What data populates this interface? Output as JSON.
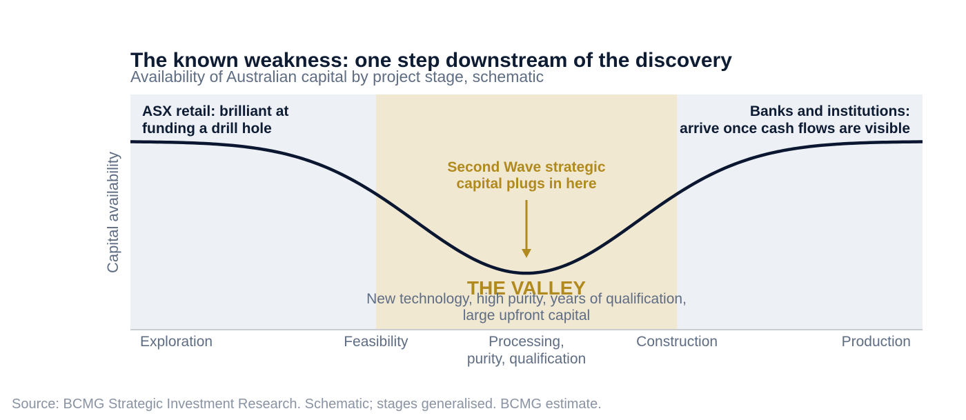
{
  "chart_data": {
    "type": "line",
    "title": "The known weakness: one step downstream of the discovery",
    "subtitle": "Availability of Australian capital by project stage, schematic",
    "ylabel": "Capital availability",
    "xlabel": "",
    "stages": [
      "Exploration",
      "Feasibility",
      "Processing,\npurity, qualification",
      "Construction",
      "Production"
    ],
    "stage_positions": [
      0,
      0.31,
      0.5,
      0.69,
      1.0
    ],
    "xlim": [
      0,
      1
    ],
    "ylim": [
      0,
      1
    ],
    "curve": {
      "description_free": true,
      "high": 0.8,
      "low": 0.24,
      "center": 0.5,
      "width": 0.14
    },
    "valley_band": [
      0.31,
      0.69
    ],
    "annotations": {
      "left": "ASX retail: brilliant at\nfunding a drill hole",
      "right": "Banks and institutions:\narrive once cash flows are visible",
      "arrow_label": "Second Wave strategic\ncapital plugs in here",
      "valley_title": "THE VALLEY",
      "valley_sub": "New technology, high purity, years of qualification,\nlarge upfront capital"
    },
    "grid": false,
    "legend": "none"
  },
  "footer": {
    "source": "Source: BCMG Strategic Investment Research. Schematic; stages generalised. BCMG estimate."
  },
  "colors": {
    "title": "#0d1b33",
    "subtitle": "#5f6d84",
    "panel": "#edf0f5",
    "valley": "#f1e8d2",
    "curve": "#0b1730",
    "accent": "#b08a1e",
    "axis": "#c9ccd3",
    "footer": "#8a93a3"
  }
}
